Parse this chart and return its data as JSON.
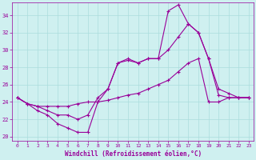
{
  "xlabel": "Windchill (Refroidissement éolien,°C)",
  "background_color": "#cff0f0",
  "grid_color": "#aadddd",
  "line_color": "#990099",
  "xlim": [
    -0.5,
    23.5
  ],
  "ylim": [
    19.5,
    35.5
  ],
  "yticks": [
    20,
    22,
    24,
    26,
    28,
    30,
    32,
    34
  ],
  "xticks": [
    0,
    1,
    2,
    3,
    4,
    5,
    6,
    7,
    8,
    9,
    10,
    11,
    12,
    13,
    14,
    15,
    16,
    17,
    18,
    19,
    20,
    21,
    22,
    23
  ],
  "series": [
    {
      "x": [
        0,
        1,
        2,
        3,
        4,
        5,
        6,
        7,
        8,
        9,
        10,
        11,
        12,
        13,
        14,
        15,
        16,
        17,
        18,
        19,
        20,
        21,
        22,
        23
      ],
      "y": [
        24.5,
        23.8,
        23.0,
        22.5,
        21.5,
        21.0,
        20.5,
        20.5,
        24.0,
        25.5,
        28.5,
        28.8,
        28.5,
        29.0,
        29.0,
        34.5,
        35.2,
        33.0,
        32.0,
        29.0,
        24.8,
        24.5,
        24.5,
        24.5
      ]
    },
    {
      "x": [
        0,
        1,
        2,
        3,
        4,
        5,
        6,
        7,
        8,
        9,
        10,
        11,
        12,
        13,
        14,
        15,
        16,
        17,
        18,
        19,
        20,
        21,
        22,
        23
      ],
      "y": [
        24.5,
        23.8,
        23.5,
        23.0,
        22.5,
        22.5,
        22.0,
        22.5,
        24.5,
        25.5,
        28.5,
        29.0,
        28.5,
        29.0,
        29.0,
        30.0,
        31.5,
        33.0,
        32.0,
        29.0,
        25.5,
        25.0,
        24.5,
        24.5
      ]
    },
    {
      "x": [
        0,
        1,
        2,
        3,
        4,
        5,
        6,
        7,
        8,
        9,
        10,
        11,
        12,
        13,
        14,
        15,
        16,
        17,
        18,
        19,
        20,
        21,
        22,
        23
      ],
      "y": [
        24.5,
        23.8,
        23.5,
        23.5,
        23.5,
        23.5,
        23.8,
        24.0,
        24.0,
        24.2,
        24.5,
        24.8,
        25.0,
        25.5,
        26.0,
        26.5,
        27.5,
        28.5,
        29.0,
        24.0,
        24.0,
        24.5,
        24.5,
        24.5
      ]
    }
  ]
}
